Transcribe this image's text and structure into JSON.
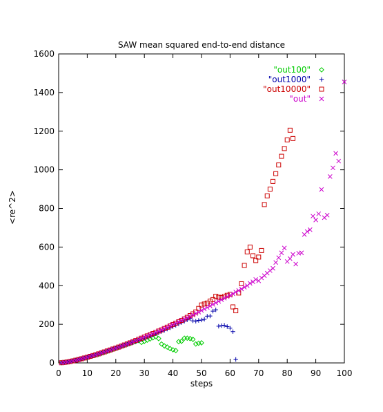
{
  "chart_data": {
    "type": "scatter",
    "title": "SAW mean squared end-to-end distance",
    "xlabel": "steps",
    "ylabel": "<re^2>",
    "xlim": [
      0,
      100
    ],
    "ylim": [
      0,
      1600
    ],
    "xticks": [
      0,
      10,
      20,
      30,
      40,
      50,
      60,
      70,
      80,
      90,
      100
    ],
    "yticks": [
      0,
      200,
      400,
      600,
      800,
      1000,
      1200,
      1400,
      1600
    ],
    "grid": false,
    "legend_position": "top-right",
    "series": [
      {
        "name": "\"out100\"",
        "marker": "diamond",
        "color": "#00cc00",
        "points": [
          [
            1,
            1
          ],
          [
            2,
            2.6
          ],
          [
            3,
            4.7
          ],
          [
            4,
            7.3
          ],
          [
            5,
            10.5
          ],
          [
            6,
            14
          ],
          [
            7,
            17.5
          ],
          [
            8,
            21
          ],
          [
            9,
            25
          ],
          [
            10,
            29
          ],
          [
            11,
            33
          ],
          [
            12,
            37
          ],
          [
            13,
            41
          ],
          [
            14,
            45
          ],
          [
            15,
            50
          ],
          [
            16,
            55
          ],
          [
            17,
            60
          ],
          [
            18,
            65
          ],
          [
            19,
            70
          ],
          [
            20,
            75
          ],
          [
            21,
            81
          ],
          [
            22,
            86
          ],
          [
            23,
            91
          ],
          [
            24,
            96
          ],
          [
            25,
            101
          ],
          [
            26,
            106
          ],
          [
            27,
            111
          ],
          [
            28,
            116
          ],
          [
            29,
            106
          ],
          [
            30,
            112
          ],
          [
            31,
            118
          ],
          [
            32,
            124
          ],
          [
            33,
            130
          ],
          [
            34,
            136
          ],
          [
            35,
            126
          ],
          [
            36,
            98
          ],
          [
            37,
            88
          ],
          [
            38,
            82
          ],
          [
            39,
            74
          ],
          [
            40,
            68
          ],
          [
            41,
            64
          ],
          [
            42,
            110
          ],
          [
            43,
            112
          ],
          [
            44,
            128
          ],
          [
            45,
            128
          ],
          [
            46,
            126
          ],
          [
            47,
            122
          ],
          [
            48,
            98
          ],
          [
            49,
            102
          ],
          [
            50,
            104
          ]
        ]
      },
      {
        "name": "\"out1000\"",
        "marker": "plus",
        "color": "#0000aa",
        "points": [
          [
            1,
            1
          ],
          [
            2,
            2.7
          ],
          [
            3,
            4.8
          ],
          [
            4,
            7.4
          ],
          [
            5,
            10.5
          ],
          [
            6,
            14
          ],
          [
            7,
            17.5
          ],
          [
            8,
            21.5
          ],
          [
            9,
            25.5
          ],
          [
            10,
            29.5
          ],
          [
            11,
            33.5
          ],
          [
            12,
            38
          ],
          [
            13,
            42
          ],
          [
            14,
            46.5
          ],
          [
            15,
            51
          ],
          [
            16,
            56
          ],
          [
            17,
            61
          ],
          [
            18,
            66
          ],
          [
            19,
            71
          ],
          [
            20,
            76
          ],
          [
            21,
            81
          ],
          [
            22,
            86
          ],
          [
            23,
            91
          ],
          [
            24,
            96
          ],
          [
            25,
            101
          ],
          [
            26,
            106
          ],
          [
            27,
            112
          ],
          [
            28,
            117
          ],
          [
            29,
            123
          ],
          [
            30,
            128
          ],
          [
            31,
            134
          ],
          [
            32,
            139
          ],
          [
            33,
            145
          ],
          [
            34,
            151
          ],
          [
            35,
            157
          ],
          [
            36,
            163
          ],
          [
            37,
            169
          ],
          [
            38,
            175
          ],
          [
            39,
            182
          ],
          [
            40,
            188
          ],
          [
            41,
            195
          ],
          [
            42,
            202
          ],
          [
            43,
            209
          ],
          [
            44,
            216
          ],
          [
            45,
            223
          ],
          [
            46,
            230
          ],
          [
            47,
            218
          ],
          [
            48,
            216
          ],
          [
            49,
            220
          ],
          [
            50,
            222
          ],
          [
            51,
            226
          ],
          [
            52,
            242
          ],
          [
            53,
            243
          ],
          [
            54,
            268
          ],
          [
            55,
            275
          ],
          [
            56,
            190
          ],
          [
            57,
            193
          ],
          [
            58,
            195
          ],
          [
            59,
            188
          ],
          [
            60,
            180
          ],
          [
            61,
            162
          ],
          [
            62,
            18
          ]
        ]
      },
      {
        "name": "\"out10000\"",
        "marker": "square",
        "color": "#cc0000",
        "points": [
          [
            1,
            1
          ],
          [
            2,
            2.7
          ],
          [
            3,
            4.8
          ],
          [
            4,
            7.4
          ],
          [
            5,
            10.5
          ],
          [
            6,
            14
          ],
          [
            7,
            17.5
          ],
          [
            8,
            21.5
          ],
          [
            9,
            25.5
          ],
          [
            10,
            29.5
          ],
          [
            11,
            34
          ],
          [
            12,
            38
          ],
          [
            13,
            42.5
          ],
          [
            14,
            47
          ],
          [
            15,
            52
          ],
          [
            16,
            57
          ],
          [
            17,
            62
          ],
          [
            18,
            67
          ],
          [
            19,
            72
          ],
          [
            20,
            77
          ],
          [
            21,
            82
          ],
          [
            22,
            87.5
          ],
          [
            23,
            93
          ],
          [
            24,
            98.5
          ],
          [
            25,
            104
          ],
          [
            26,
            110
          ],
          [
            27,
            116
          ],
          [
            28,
            122
          ],
          [
            29,
            128
          ],
          [
            30,
            134
          ],
          [
            31,
            140
          ],
          [
            32,
            146
          ],
          [
            33,
            152
          ],
          [
            34,
            158
          ],
          [
            35,
            165
          ],
          [
            36,
            171
          ],
          [
            37,
            178
          ],
          [
            38,
            185
          ],
          [
            39,
            192
          ],
          [
            40,
            199
          ],
          [
            41,
            206
          ],
          [
            42,
            213
          ],
          [
            43,
            220
          ],
          [
            44,
            228
          ],
          [
            45,
            236
          ],
          [
            46,
            245
          ],
          [
            47,
            254
          ],
          [
            48,
            264
          ],
          [
            49,
            282
          ],
          [
            50,
            300
          ],
          [
            51,
            305
          ],
          [
            52,
            310
          ],
          [
            53,
            320
          ],
          [
            54,
            328
          ],
          [
            55,
            345
          ],
          [
            56,
            340
          ],
          [
            57,
            338
          ],
          [
            58,
            345
          ],
          [
            59,
            350
          ],
          [
            60,
            355
          ],
          [
            61,
            290
          ],
          [
            62,
            270
          ],
          [
            63,
            362
          ],
          [
            64,
            410
          ],
          [
            65,
            505
          ],
          [
            66,
            575
          ],
          [
            67,
            600
          ],
          [
            68,
            555
          ],
          [
            69,
            530
          ],
          [
            70,
            548
          ],
          [
            71,
            582
          ],
          [
            72,
            820
          ],
          [
            73,
            865
          ],
          [
            74,
            900
          ],
          [
            75,
            940
          ],
          [
            76,
            980
          ],
          [
            77,
            1025
          ],
          [
            78,
            1070
          ],
          [
            79,
            1110
          ],
          [
            80,
            1155
          ],
          [
            81,
            1205
          ],
          [
            82,
            1162
          ]
        ]
      },
      {
        "name": "\"out\"",
        "marker": "cross",
        "color": "#cc00cc",
        "points": [
          [
            1,
            1
          ],
          [
            2,
            2.7
          ],
          [
            3,
            4.8
          ],
          [
            4,
            7.4
          ],
          [
            5,
            10.5
          ],
          [
            6,
            14
          ],
          [
            7,
            17.5
          ],
          [
            8,
            21.5
          ],
          [
            9,
            25.5
          ],
          [
            10,
            29.5
          ],
          [
            11,
            34
          ],
          [
            12,
            38
          ],
          [
            13,
            42.5
          ],
          [
            14,
            47
          ],
          [
            15,
            52
          ],
          [
            16,
            57
          ],
          [
            17,
            62
          ],
          [
            18,
            67
          ],
          [
            19,
            72
          ],
          [
            20,
            77
          ],
          [
            21,
            82
          ],
          [
            22,
            87.5
          ],
          [
            23,
            93
          ],
          [
            24,
            98.5
          ],
          [
            25,
            104
          ],
          [
            26,
            110
          ],
          [
            27,
            116
          ],
          [
            28,
            122
          ],
          [
            29,
            128
          ],
          [
            30,
            134
          ],
          [
            31,
            140
          ],
          [
            32,
            146
          ],
          [
            33,
            152
          ],
          [
            34,
            158
          ],
          [
            35,
            165
          ],
          [
            36,
            171
          ],
          [
            37,
            178
          ],
          [
            38,
            185
          ],
          [
            39,
            192
          ],
          [
            40,
            199
          ],
          [
            41,
            206
          ],
          [
            42,
            213
          ],
          [
            43,
            220
          ],
          [
            44,
            227
          ],
          [
            45,
            234
          ],
          [
            46,
            241
          ],
          [
            47,
            248
          ],
          [
            48,
            256
          ],
          [
            49,
            263
          ],
          [
            50,
            271
          ],
          [
            51,
            279
          ],
          [
            52,
            287
          ],
          [
            53,
            295
          ],
          [
            54,
            303
          ],
          [
            55,
            311
          ],
          [
            56,
            319
          ],
          [
            57,
            327
          ],
          [
            58,
            335
          ],
          [
            59,
            343
          ],
          [
            60,
            350
          ],
          [
            61,
            358
          ],
          [
            62,
            367
          ],
          [
            63,
            375
          ],
          [
            64,
            383
          ],
          [
            65,
            392
          ],
          [
            66,
            400
          ],
          [
            67,
            412
          ],
          [
            68,
            420
          ],
          [
            69,
            432
          ],
          [
            70,
            425
          ],
          [
            71,
            440
          ],
          [
            72,
            452
          ],
          [
            73,
            465
          ],
          [
            74,
            478
          ],
          [
            75,
            490
          ],
          [
            76,
            520
          ],
          [
            77,
            545
          ],
          [
            78,
            570
          ],
          [
            79,
            595
          ],
          [
            80,
            525
          ],
          [
            81,
            540
          ],
          [
            82,
            562
          ],
          [
            83,
            512
          ],
          [
            84,
            568
          ],
          [
            85,
            570
          ],
          [
            86,
            665
          ],
          [
            87,
            680
          ],
          [
            88,
            690
          ],
          [
            89,
            760
          ],
          [
            90,
            740
          ],
          [
            91,
            772
          ],
          [
            92,
            898
          ],
          [
            93,
            752
          ],
          [
            94,
            765
          ],
          [
            95,
            965
          ],
          [
            96,
            1010
          ],
          [
            97,
            1085
          ],
          [
            98,
            1045
          ],
          [
            100,
            1455
          ]
        ]
      }
    ]
  }
}
